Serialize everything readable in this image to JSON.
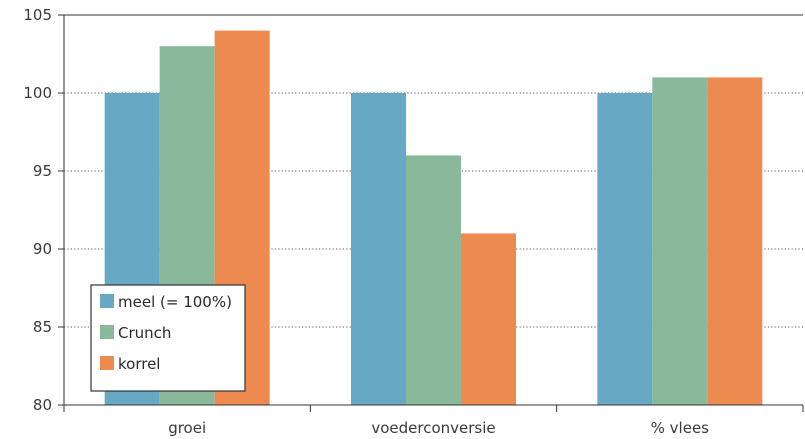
{
  "chart_data": {
    "type": "bar",
    "categories": [
      "groei",
      "voederconversie",
      "% vlees"
    ],
    "series": [
      {
        "name": "meel (= 100%)",
        "color": "#67a9c5",
        "values": [
          100,
          100,
          100
        ]
      },
      {
        "name": "Crunch",
        "color": "#89b99a",
        "values": [
          103,
          96,
          101
        ]
      },
      {
        "name": "korrel",
        "color": "#ec8a50",
        "values": [
          104,
          91,
          101
        ]
      }
    ],
    "ylim": [
      80,
      105
    ],
    "yticks": [
      80,
      85,
      90,
      95,
      100,
      105
    ],
    "title": "",
    "xlabel": "",
    "ylabel": "",
    "grid": "horizontal dotted",
    "legend_position": "bottom-left"
  }
}
